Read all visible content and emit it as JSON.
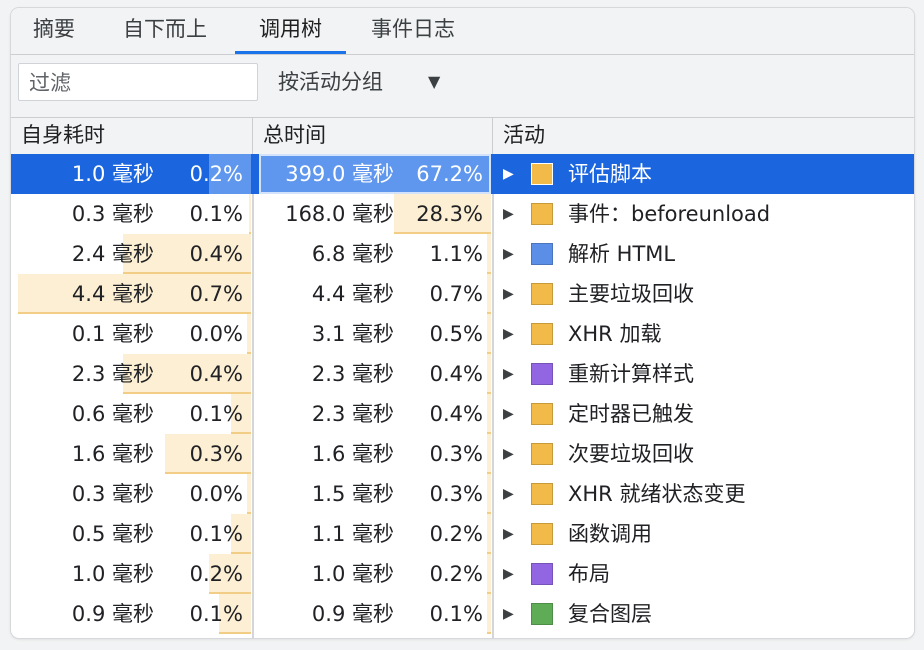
{
  "tabs": [
    {
      "label": "摘要",
      "active": false
    },
    {
      "label": "自下而上",
      "active": false
    },
    {
      "label": "调用树",
      "active": true
    },
    {
      "label": "事件日志",
      "active": false
    }
  ],
  "toolbar": {
    "filter_placeholder": "过滤",
    "group_by_label": "按活动分组",
    "dropdown_arrow": "▼"
  },
  "columns": {
    "self_time": "自身耗时",
    "total_time": "总时间",
    "activity": "活动"
  },
  "colors": {
    "script": "#f2bb49",
    "parse": "#5b8ee6",
    "rendering": "#9266e2",
    "painting": "#5fac57",
    "selection": "#1b66df",
    "bar": "#fcefd4"
  },
  "rows": [
    {
      "self_ms": "1.0 毫秒",
      "self_pct": "0.2%",
      "self_pct_value": 0.2,
      "total_ms": "399.0 毫秒",
      "total_pct": "67.2%",
      "total_pct_value": 67.2,
      "name": "评估脚本",
      "category": "script",
      "selected": true
    },
    {
      "self_ms": "0.3 毫秒",
      "self_pct": "0.1%",
      "self_pct_value": 0.1,
      "total_ms": "168.0 毫秒",
      "total_pct": "28.3%",
      "total_pct_value": 28.3,
      "name": "事件：beforeunload",
      "category": "script",
      "selected": false
    },
    {
      "self_ms": "2.4 毫秒",
      "self_pct": "0.4%",
      "self_pct_value": 0.4,
      "total_ms": "6.8 毫秒",
      "total_pct": "1.1%",
      "total_pct_value": 1.1,
      "name": "解析 HTML",
      "category": "parse",
      "selected": false
    },
    {
      "self_ms": "4.4 毫秒",
      "self_pct": "0.7%",
      "self_pct_value": 0.7,
      "total_ms": "4.4 毫秒",
      "total_pct": "0.7%",
      "total_pct_value": 0.7,
      "name": "主要垃圾回收",
      "category": "script",
      "selected": false
    },
    {
      "self_ms": "0.1 毫秒",
      "self_pct": "0.0%",
      "self_pct_value": 0.0,
      "total_ms": "3.1 毫秒",
      "total_pct": "0.5%",
      "total_pct_value": 0.5,
      "name": "XHR 加载",
      "category": "script",
      "selected": false
    },
    {
      "self_ms": "2.3 毫秒",
      "self_pct": "0.4%",
      "self_pct_value": 0.4,
      "total_ms": "2.3 毫秒",
      "total_pct": "0.4%",
      "total_pct_value": 0.4,
      "name": "重新计算样式",
      "category": "rendering",
      "selected": false
    },
    {
      "self_ms": "0.6 毫秒",
      "self_pct": "0.1%",
      "self_pct_value": 0.1,
      "total_ms": "2.3 毫秒",
      "total_pct": "0.4%",
      "total_pct_value": 0.4,
      "name": "定时器已触发",
      "category": "script",
      "selected": false
    },
    {
      "self_ms": "1.6 毫秒",
      "self_pct": "0.3%",
      "self_pct_value": 0.3,
      "total_ms": "1.6 毫秒",
      "total_pct": "0.3%",
      "total_pct_value": 0.3,
      "name": "次要垃圾回收",
      "category": "script",
      "selected": false
    },
    {
      "self_ms": "0.3 毫秒",
      "self_pct": "0.0%",
      "self_pct_value": 0.0,
      "total_ms": "1.5 毫秒",
      "total_pct": "0.3%",
      "total_pct_value": 0.3,
      "name": "XHR 就绪状态变更",
      "category": "script",
      "selected": false
    },
    {
      "self_ms": "0.5 毫秒",
      "self_pct": "0.1%",
      "self_pct_value": 0.1,
      "total_ms": "1.1 毫秒",
      "total_pct": "0.2%",
      "total_pct_value": 0.2,
      "name": "函数调用",
      "category": "script",
      "selected": false
    },
    {
      "self_ms": "1.0 毫秒",
      "self_pct": "0.2%",
      "self_pct_value": 0.2,
      "total_ms": "1.0 毫秒",
      "total_pct": "0.2%",
      "total_pct_value": 0.2,
      "name": "布局",
      "category": "rendering",
      "selected": false
    },
    {
      "self_ms": "0.9 毫秒",
      "self_pct": "0.1%",
      "self_pct_value": 0.1,
      "total_ms": "0.9 毫秒",
      "total_pct": "0.1%",
      "total_pct_value": 0.1,
      "name": "复合图层",
      "category": "painting",
      "selected": false
    }
  ]
}
